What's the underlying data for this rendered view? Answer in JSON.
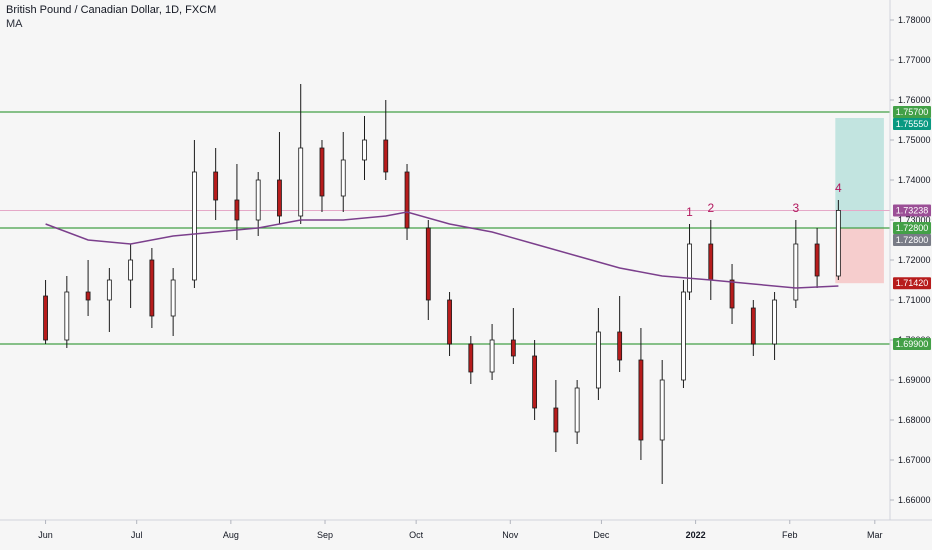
{
  "header": {
    "title": "British Pound / Canadian Dollar, 1D, FXCM",
    "indicator": "MA"
  },
  "colors": {
    "up": "#ffffff",
    "down": "#b71c1c",
    "wick": "#1a1a1a",
    "ma": "#7b3f8c",
    "level": "#43a047",
    "pink_line": "#e5a9c8",
    "target_zone": "#b9e1dc",
    "stop_zone": "#f6c6c6",
    "tag_green": "#43a047",
    "tag_teal": "#089981",
    "tag_gray": "#787b86",
    "tag_purple": "#9b4f96",
    "tag_red": "#b71c1c"
  },
  "chart_data": {
    "type": "candlestick",
    "instrument": "British Pound / Canadian Dollar",
    "timeframe": "1D",
    "source": "FXCM",
    "x_axis": {
      "labels": [
        "Jun",
        "Jul",
        "Aug",
        "Sep",
        "Oct",
        "Nov",
        "Dec",
        "2022",
        "Feb",
        "Mar"
      ]
    },
    "y_axis": {
      "range": [
        1.655,
        1.785
      ],
      "ticks": [
        "1.66000",
        "1.67000",
        "1.68000",
        "1.69000",
        "1.70000",
        "1.71000",
        "1.72000",
        "1.73000",
        "1.74000",
        "1.75000",
        "1.76000",
        "1.77000",
        "1.78000"
      ]
    },
    "horizontal_levels": [
      1.757,
      1.728,
      1.699
    ],
    "current_price_line": 1.73238,
    "price_tags": [
      {
        "text": "1.75700",
        "kind": "green"
      },
      {
        "text": "1.75550",
        "kind": "teal"
      },
      {
        "text": "1.73238",
        "kind": "purple"
      },
      {
        "text": "1.72800",
        "kind": "green"
      },
      {
        "text": "1.72800",
        "kind": "gray"
      },
      {
        "text": "1.71420",
        "kind": "red"
      },
      {
        "text": "1.69900",
        "kind": "green"
      }
    ],
    "position": {
      "entry": 1.728,
      "target": 1.7555,
      "stop": 1.7142,
      "start_date": "Feb 16",
      "end_date": "Mar 04"
    },
    "annotations": [
      {
        "label": "1",
        "date": "Dec 30"
      },
      {
        "label": "2",
        "date": "Jan 06"
      },
      {
        "label": "3",
        "date": "Feb 03"
      },
      {
        "label": "4",
        "date": "Feb 17"
      }
    ],
    "series": [
      {
        "name": "GBPCAD",
        "kind": "ohlc",
        "points": [
          {
            "date": "Jun 01",
            "o": 1.711,
            "h": 1.715,
            "l": 1.699,
            "c": 1.7
          },
          {
            "date": "Jun 08",
            "o": 1.7,
            "h": 1.716,
            "l": 1.698,
            "c": 1.712
          },
          {
            "date": "Jun 15",
            "o": 1.712,
            "h": 1.72,
            "l": 1.706,
            "c": 1.71
          },
          {
            "date": "Jun 22",
            "o": 1.71,
            "h": 1.718,
            "l": 1.702,
            "c": 1.715
          },
          {
            "date": "Jun 29",
            "o": 1.715,
            "h": 1.724,
            "l": 1.708,
            "c": 1.72
          },
          {
            "date": "Jul 06",
            "o": 1.72,
            "h": 1.723,
            "l": 1.703,
            "c": 1.706
          },
          {
            "date": "Jul 13",
            "o": 1.706,
            "h": 1.718,
            "l": 1.701,
            "c": 1.715
          },
          {
            "date": "Jul 20",
            "o": 1.715,
            "h": 1.75,
            "l": 1.713,
            "c": 1.742
          },
          {
            "date": "Jul 27",
            "o": 1.742,
            "h": 1.748,
            "l": 1.73,
            "c": 1.735
          },
          {
            "date": "Aug 03",
            "o": 1.735,
            "h": 1.744,
            "l": 1.725,
            "c": 1.73
          },
          {
            "date": "Aug 10",
            "o": 1.73,
            "h": 1.742,
            "l": 1.726,
            "c": 1.74
          },
          {
            "date": "Aug 17",
            "o": 1.74,
            "h": 1.752,
            "l": 1.729,
            "c": 1.731
          },
          {
            "date": "Aug 24",
            "o": 1.731,
            "h": 1.764,
            "l": 1.729,
            "c": 1.748
          },
          {
            "date": "Aug 31",
            "o": 1.748,
            "h": 1.75,
            "l": 1.732,
            "c": 1.736
          },
          {
            "date": "Sep 07",
            "o": 1.736,
            "h": 1.752,
            "l": 1.732,
            "c": 1.745
          },
          {
            "date": "Sep 14",
            "o": 1.745,
            "h": 1.756,
            "l": 1.74,
            "c": 1.75
          },
          {
            "date": "Sep 21",
            "o": 1.75,
            "h": 1.76,
            "l": 1.74,
            "c": 1.742
          },
          {
            "date": "Sep 28",
            "o": 1.742,
            "h": 1.744,
            "l": 1.725,
            "c": 1.728
          },
          {
            "date": "Oct 05",
            "o": 1.728,
            "h": 1.73,
            "l": 1.705,
            "c": 1.71
          },
          {
            "date": "Oct 12",
            "o": 1.71,
            "h": 1.712,
            "l": 1.696,
            "c": 1.699
          },
          {
            "date": "Oct 19",
            "o": 1.699,
            "h": 1.701,
            "l": 1.689,
            "c": 1.692
          },
          {
            "date": "Oct 26",
            "o": 1.692,
            "h": 1.704,
            "l": 1.69,
            "c": 1.7
          },
          {
            "date": "Nov 02",
            "o": 1.7,
            "h": 1.708,
            "l": 1.694,
            "c": 1.696
          },
          {
            "date": "Nov 09",
            "o": 1.696,
            "h": 1.7,
            "l": 1.68,
            "c": 1.683
          },
          {
            "date": "Nov 16",
            "o": 1.683,
            "h": 1.69,
            "l": 1.672,
            "c": 1.677
          },
          {
            "date": "Nov 23",
            "o": 1.677,
            "h": 1.69,
            "l": 1.674,
            "c": 1.688
          },
          {
            "date": "Nov 30",
            "o": 1.688,
            "h": 1.708,
            "l": 1.685,
            "c": 1.702
          },
          {
            "date": "Dec 07",
            "o": 1.702,
            "h": 1.711,
            "l": 1.692,
            "c": 1.695
          },
          {
            "date": "Dec 14",
            "o": 1.695,
            "h": 1.703,
            "l": 1.67,
            "c": 1.675
          },
          {
            "date": "Dec 21",
            "o": 1.675,
            "h": 1.695,
            "l": 1.664,
            "c": 1.69
          },
          {
            "date": "Dec 28",
            "o": 1.69,
            "h": 1.715,
            "l": 1.688,
            "c": 1.712
          },
          {
            "date": "Dec 30",
            "o": 1.712,
            "h": 1.729,
            "l": 1.71,
            "c": 1.724
          },
          {
            "date": "Jan 06",
            "o": 1.724,
            "h": 1.73,
            "l": 1.71,
            "c": 1.715
          },
          {
            "date": "Jan 13",
            "o": 1.715,
            "h": 1.719,
            "l": 1.704,
            "c": 1.708
          },
          {
            "date": "Jan 20",
            "o": 1.708,
            "h": 1.71,
            "l": 1.696,
            "c": 1.699
          },
          {
            "date": "Jan 27",
            "o": 1.699,
            "h": 1.712,
            "l": 1.695,
            "c": 1.71
          },
          {
            "date": "Feb 03",
            "o": 1.71,
            "h": 1.73,
            "l": 1.708,
            "c": 1.724
          },
          {
            "date": "Feb 10",
            "o": 1.724,
            "h": 1.728,
            "l": 1.713,
            "c": 1.716
          },
          {
            "date": "Feb 17",
            "o": 1.716,
            "h": 1.735,
            "l": 1.715,
            "c": 1.7324
          }
        ]
      },
      {
        "name": "MA",
        "kind": "line",
        "points": [
          {
            "date": "Jun 01",
            "value": 1.729
          },
          {
            "date": "Jun 15",
            "value": 1.725
          },
          {
            "date": "Jun 29",
            "value": 1.724
          },
          {
            "date": "Jul 13",
            "value": 1.726
          },
          {
            "date": "Jul 27",
            "value": 1.727
          },
          {
            "date": "Aug 10",
            "value": 1.728
          },
          {
            "date": "Aug 24",
            "value": 1.73
          },
          {
            "date": "Sep 07",
            "value": 1.73
          },
          {
            "date": "Sep 21",
            "value": 1.731
          },
          {
            "date": "Sep 28",
            "value": 1.732
          },
          {
            "date": "Oct 12",
            "value": 1.729
          },
          {
            "date": "Oct 26",
            "value": 1.727
          },
          {
            "date": "Nov 09",
            "value": 1.724
          },
          {
            "date": "Nov 23",
            "value": 1.721
          },
          {
            "date": "Dec 07",
            "value": 1.718
          },
          {
            "date": "Dec 21",
            "value": 1.716
          },
          {
            "date": "Jan 06",
            "value": 1.715
          },
          {
            "date": "Jan 20",
            "value": 1.714
          },
          {
            "date": "Feb 03",
            "value": 1.713
          },
          {
            "date": "Feb 17",
            "value": 1.7135
          }
        ]
      }
    ]
  }
}
